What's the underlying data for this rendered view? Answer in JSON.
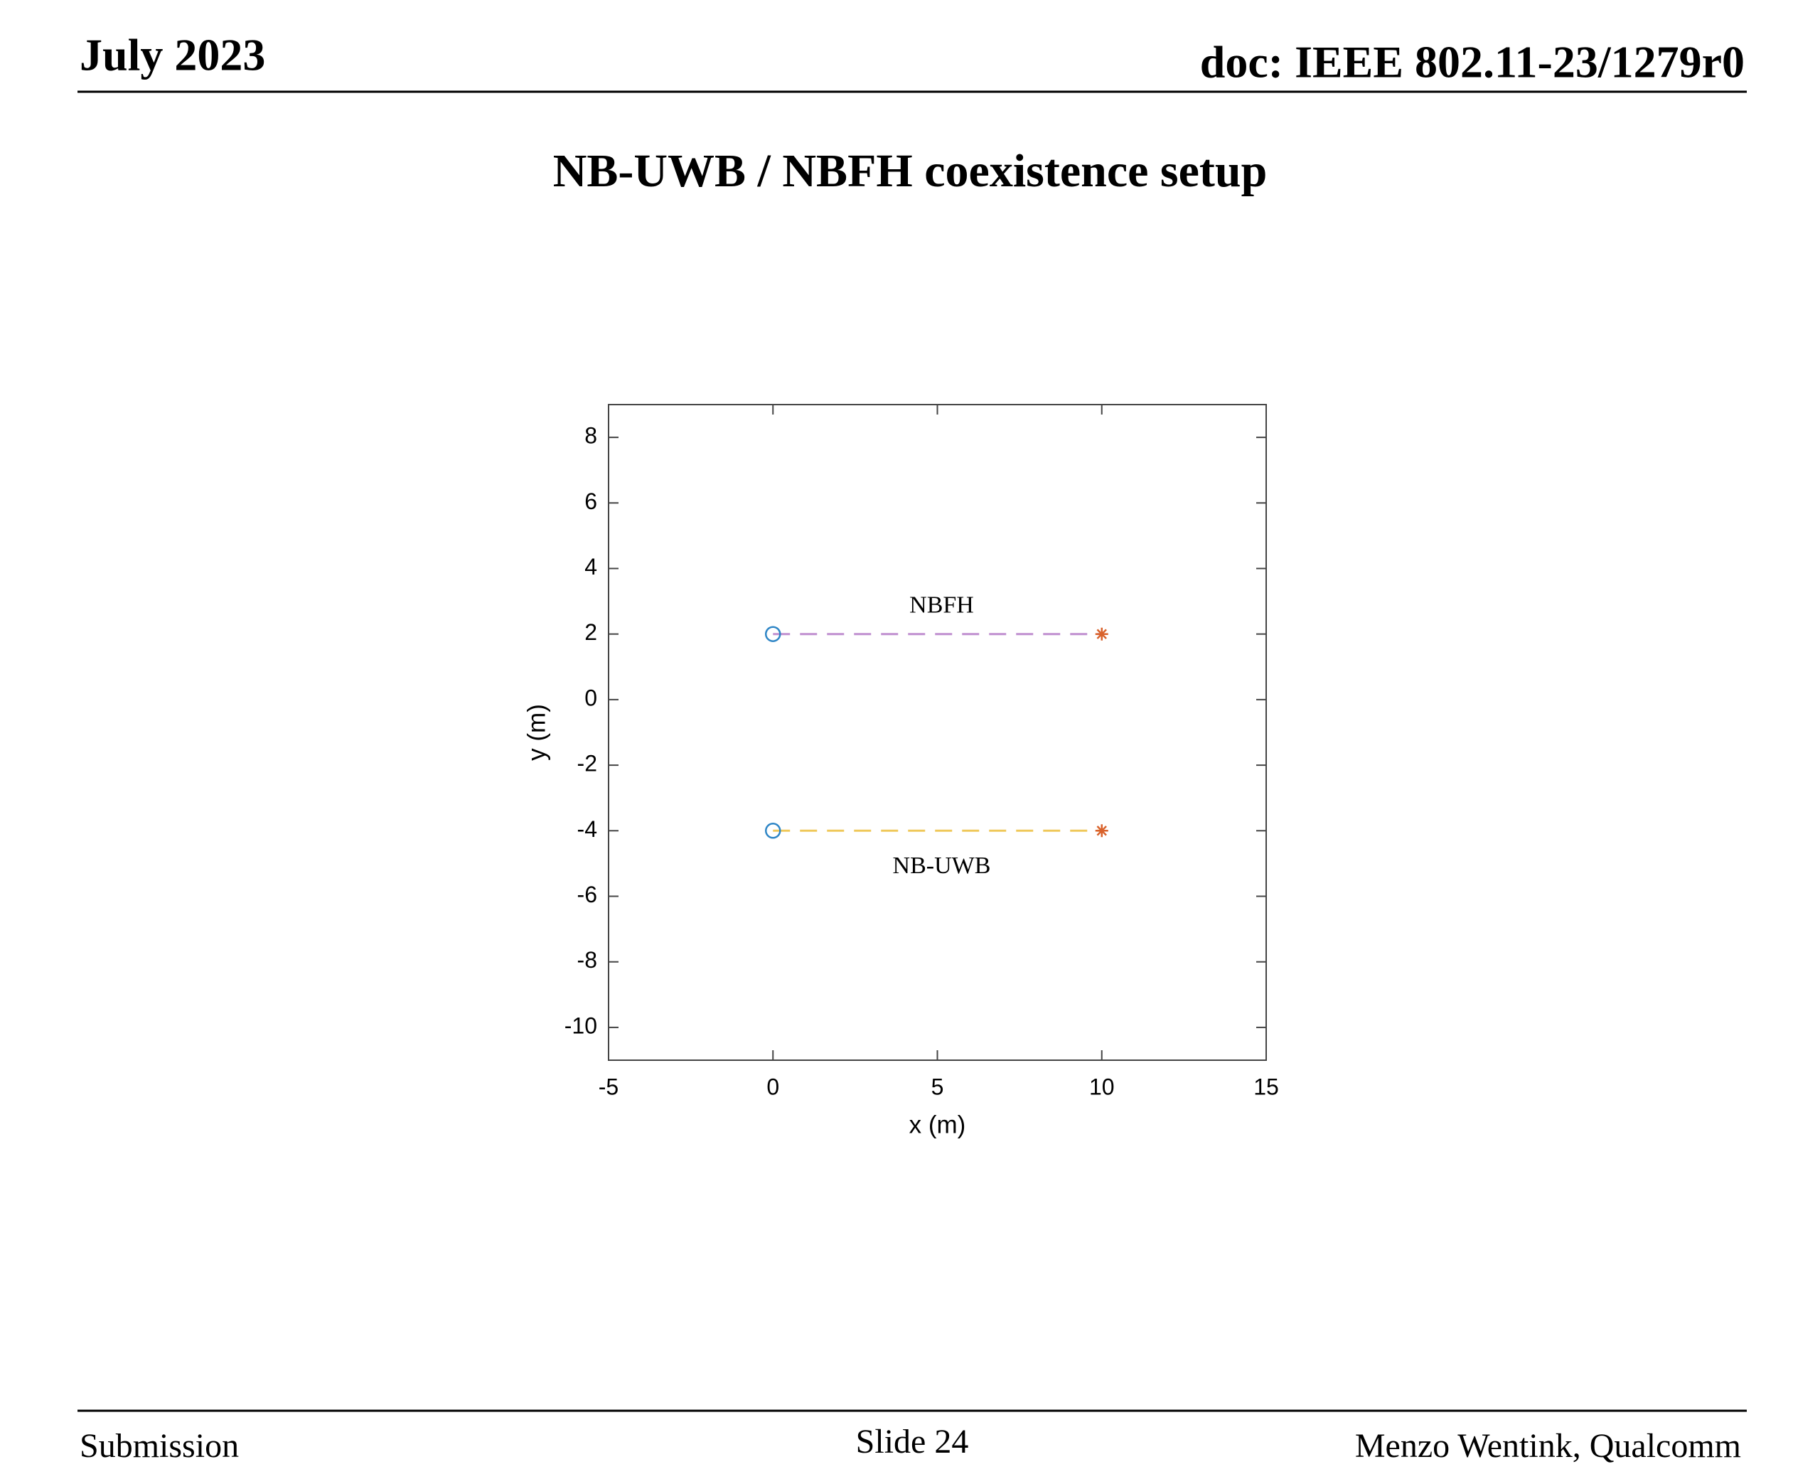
{
  "header": {
    "date": "July 2023",
    "doc": "doc: IEEE 802.11-23/1279r0"
  },
  "title": "NB-UWB / NBFH coexistence setup",
  "chart_data": {
    "type": "line",
    "x_label": "x (m)",
    "y_label": "y (m)",
    "x": [
      0,
      10
    ],
    "series": [
      {
        "name": "NBFH",
        "color": "#c08fd0",
        "values": [
          2,
          2
        ]
      },
      {
        "name": "NB-UWB",
        "color": "#efc85a",
        "values": [
          -4,
          -4
        ]
      }
    ],
    "start_marker_color": "#2f86c6",
    "end_marker_color": "#d9622b",
    "line_style": "dashed",
    "xlim": [
      -5,
      15
    ],
    "xticks": [
      -5,
      0,
      5,
      10,
      15
    ],
    "ylim": [
      -11,
      9
    ],
    "yticks": [
      -10,
      -8,
      -6,
      -4,
      -2,
      0,
      2,
      4,
      6,
      8
    ],
    "grid": false
  },
  "footer": {
    "left": "Submission",
    "center": "Slide 24",
    "right": "Menzo Wentink, Qualcomm"
  }
}
